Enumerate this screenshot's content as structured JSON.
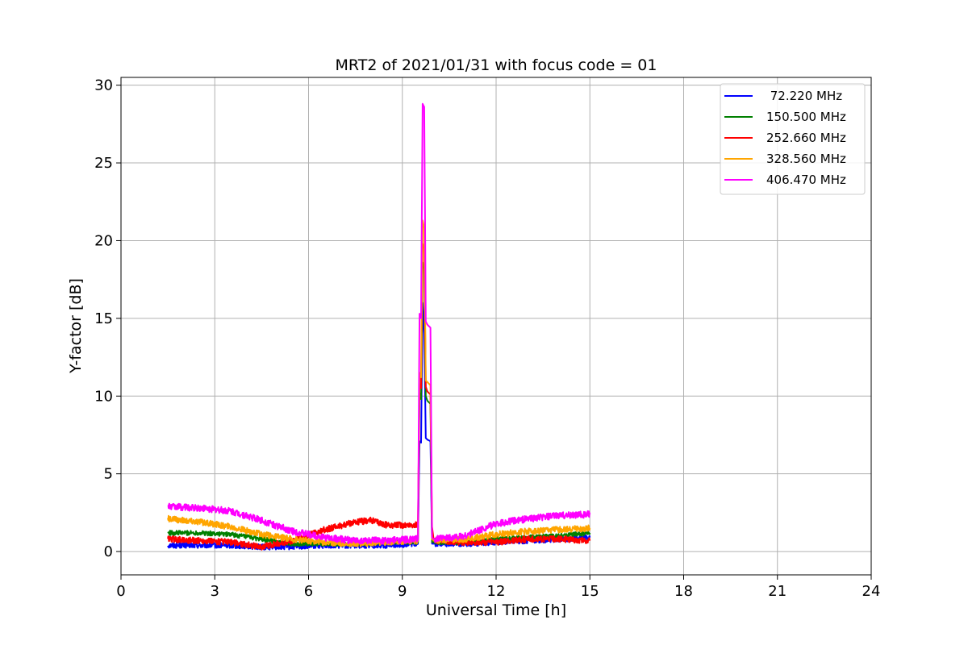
{
  "chart_data": {
    "type": "line",
    "title": "MRT2 of 2021/01/31 with focus code = 01",
    "xlabel": "Universal Time [h]",
    "ylabel": "Y-factor [dB]",
    "xlim": [
      0,
      24
    ],
    "ylim": [
      -1.5,
      30.5
    ],
    "xticks": [
      0,
      3,
      6,
      9,
      12,
      15,
      18,
      21,
      24
    ],
    "yticks": [
      0,
      5,
      10,
      15,
      20,
      25,
      30
    ],
    "xtick_labels": [
      "0",
      "3",
      "6",
      "9",
      "12",
      "15",
      "18",
      "21",
      "24"
    ],
    "ytick_labels": [
      "0",
      "5",
      "10",
      "15",
      "20",
      "25",
      "30"
    ],
    "grid": true,
    "legend_position": "top-right",
    "series": [
      {
        "name": " 72.220 MHz",
        "color": "#0000ff",
        "noise": 0.18,
        "x": [
          1.5,
          2.5,
          3.5,
          4.5,
          5.5,
          6.5,
          7.5,
          8.5,
          9.5,
          9.55,
          9.6,
          9.65,
          9.7,
          9.75,
          9.8,
          9.9,
          9.95,
          10.0,
          10.05,
          11.0,
          12.0,
          13.0,
          14.0,
          15.0
        ],
        "y": [
          0.4,
          0.4,
          0.4,
          0.3,
          0.3,
          0.4,
          0.4,
          0.4,
          0.5,
          7.1,
          7.0,
          16.0,
          14.0,
          7.3,
          7.2,
          7.1,
          0.5,
          0.5,
          0.5,
          0.5,
          0.6,
          0.7,
          0.8,
          0.9
        ]
      },
      {
        "name": "150.500 MHz",
        "color": "#008000",
        "noise": 0.15,
        "x": [
          1.5,
          2.5,
          3.5,
          4.5,
          5.5,
          6.5,
          7.5,
          8.5,
          9.5,
          9.55,
          9.6,
          9.65,
          9.7,
          9.75,
          9.8,
          9.9,
          9.95,
          10.0,
          10.05,
          11.0,
          12.0,
          13.0,
          14.0,
          15.0
        ],
        "y": [
          1.2,
          1.2,
          1.1,
          0.8,
          0.5,
          0.5,
          0.5,
          0.6,
          0.6,
          10.2,
          9.8,
          18.6,
          18.2,
          10.0,
          9.7,
          9.5,
          0.6,
          0.6,
          0.6,
          0.6,
          0.8,
          0.9,
          1.0,
          1.2
        ]
      },
      {
        "name": "252.660 MHz",
        "color": "#ff0000",
        "noise": 0.2,
        "x": [
          1.5,
          2.5,
          3.5,
          4.5,
          5.5,
          6.5,
          7.5,
          8.0,
          8.5,
          9.5,
          9.55,
          9.6,
          9.65,
          9.7,
          9.75,
          9.8,
          9.9,
          9.95,
          10.0,
          10.05,
          11.0,
          12.0,
          13.0,
          14.0,
          15.0
        ],
        "y": [
          0.8,
          0.7,
          0.6,
          0.3,
          0.7,
          1.4,
          1.9,
          2.0,
          1.7,
          1.7,
          10.8,
          10.5,
          19.8,
          19.5,
          10.6,
          10.3,
          10.1,
          1.6,
          0.8,
          0.7,
          0.6,
          0.6,
          0.8,
          0.8,
          0.7
        ]
      },
      {
        "name": "328.560 MHz",
        "color": "#ffa500",
        "noise": 0.2,
        "x": [
          1.5,
          2.5,
          3.5,
          4.5,
          5.5,
          6.5,
          7.5,
          8.5,
          9.5,
          9.55,
          9.6,
          9.65,
          9.7,
          9.75,
          9.8,
          9.9,
          9.95,
          10.0,
          10.05,
          11.0,
          12.0,
          13.0,
          14.0,
          15.0
        ],
        "y": [
          2.1,
          1.9,
          1.6,
          1.1,
          0.8,
          0.6,
          0.5,
          0.6,
          0.7,
          11.5,
          11.2,
          21.3,
          20.8,
          11.0,
          10.9,
          10.7,
          0.8,
          0.7,
          0.7,
          0.8,
          1.1,
          1.3,
          1.4,
          1.5
        ]
      },
      {
        "name": "406.470 MHz",
        "color": "#ff00ff",
        "noise": 0.22,
        "x": [
          1.5,
          2.5,
          3.5,
          4.5,
          5.5,
          6.5,
          7.5,
          8.5,
          9.5,
          9.55,
          9.6,
          9.65,
          9.7,
          9.75,
          9.8,
          9.9,
          9.95,
          10.0,
          10.05,
          11.0,
          12.0,
          13.0,
          14.0,
          15.0
        ],
        "y": [
          2.9,
          2.8,
          2.6,
          2.0,
          1.3,
          0.9,
          0.7,
          0.7,
          0.8,
          15.3,
          15.0,
          28.8,
          28.6,
          14.8,
          14.6,
          14.4,
          0.9,
          0.8,
          0.8,
          1.0,
          1.8,
          2.1,
          2.3,
          2.4
        ]
      }
    ]
  }
}
